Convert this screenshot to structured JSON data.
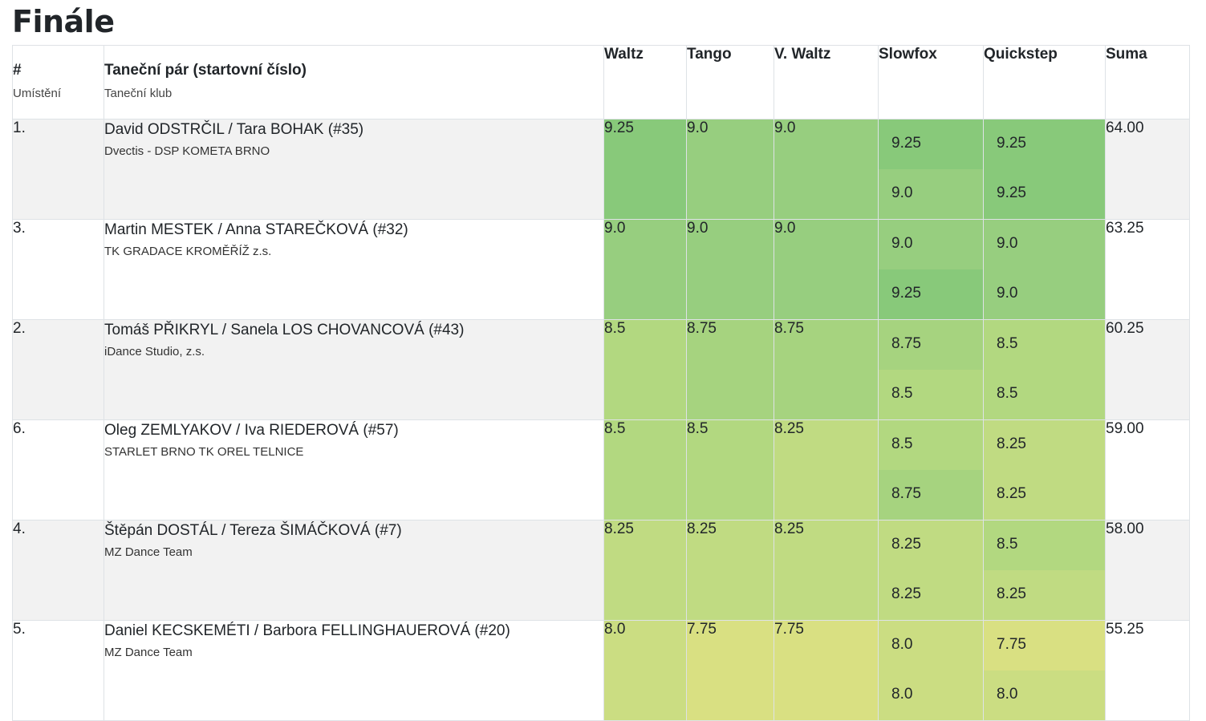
{
  "title": "Finále",
  "header": {
    "place_top": "#",
    "place_sub": "Umístění",
    "pair_top": "Taneční pár (startovní číslo)",
    "pair_sub": "Taneční klub",
    "waltz": "Waltz",
    "tango": "Tango",
    "vwaltz": "V. Waltz",
    "slowfox": "Slowfox",
    "quickstep": "Quickstep",
    "sum": "Suma"
  },
  "colors": {
    "9.25": "#88c97a",
    "9.0": "#97ce7f",
    "8.75": "#a6d37f",
    "8.5": "#b2d880",
    "8.25": "#c0db82",
    "8.0": "#cbdd82",
    "7.75": "#d9e082"
  },
  "rows": [
    {
      "place": "1.",
      "pair": "David ODSTRČIL / Tara BOHAK (#35)",
      "club": "Dvectis - DSP KOMETA BRNO",
      "waltz": "9.25",
      "tango": "9.0",
      "vwaltz": "9.0",
      "slowfox": [
        "9.25",
        "9.0"
      ],
      "quickstep": [
        "9.25",
        "9.25"
      ],
      "sum": "64.00"
    },
    {
      "place": "3.",
      "pair": "Martin MESTEK / Anna STAREČKOVÁ (#32)",
      "club": "TK GRADACE KROMĚŘÍŽ z.s.",
      "waltz": "9.0",
      "tango": "9.0",
      "vwaltz": "9.0",
      "slowfox": [
        "9.0",
        "9.25"
      ],
      "quickstep": [
        "9.0",
        "9.0"
      ],
      "sum": "63.25"
    },
    {
      "place": "2.",
      "pair": "Tomáš PŘIKRYL / Sanela LOS CHOVANCOVÁ (#43)",
      "club": "iDance Studio, z.s.",
      "waltz": "8.5",
      "tango": "8.75",
      "vwaltz": "8.75",
      "slowfox": [
        "8.75",
        "8.5"
      ],
      "quickstep": [
        "8.5",
        "8.5"
      ],
      "sum": "60.25"
    },
    {
      "place": "6.",
      "pair": "Oleg ZEMLYAKOV / Iva RIEDEROVÁ (#57)",
      "club": "STARLET BRNO TK OREL TELNICE",
      "waltz": "8.5",
      "tango": "8.5",
      "vwaltz": "8.25",
      "slowfox": [
        "8.5",
        "8.75"
      ],
      "quickstep": [
        "8.25",
        "8.25"
      ],
      "sum": "59.00"
    },
    {
      "place": "4.",
      "pair": "Štěpán DOSTÁL / Tereza ŠIMÁČKOVÁ (#7)",
      "club": "MZ Dance Team",
      "waltz": "8.25",
      "tango": "8.25",
      "vwaltz": "8.25",
      "slowfox": [
        "8.25",
        "8.25"
      ],
      "quickstep": [
        "8.5",
        "8.25"
      ],
      "sum": "58.00"
    },
    {
      "place": "5.",
      "pair": "Daniel KECSKEMÉTI / Barbora FELLINGHAUEROVÁ (#20)",
      "club": "MZ Dance Team",
      "waltz": "8.0",
      "tango": "7.75",
      "vwaltz": "7.75",
      "slowfox": [
        "8.0",
        "8.0"
      ],
      "quickstep": [
        "7.75",
        "8.0"
      ],
      "sum": "55.25"
    }
  ]
}
